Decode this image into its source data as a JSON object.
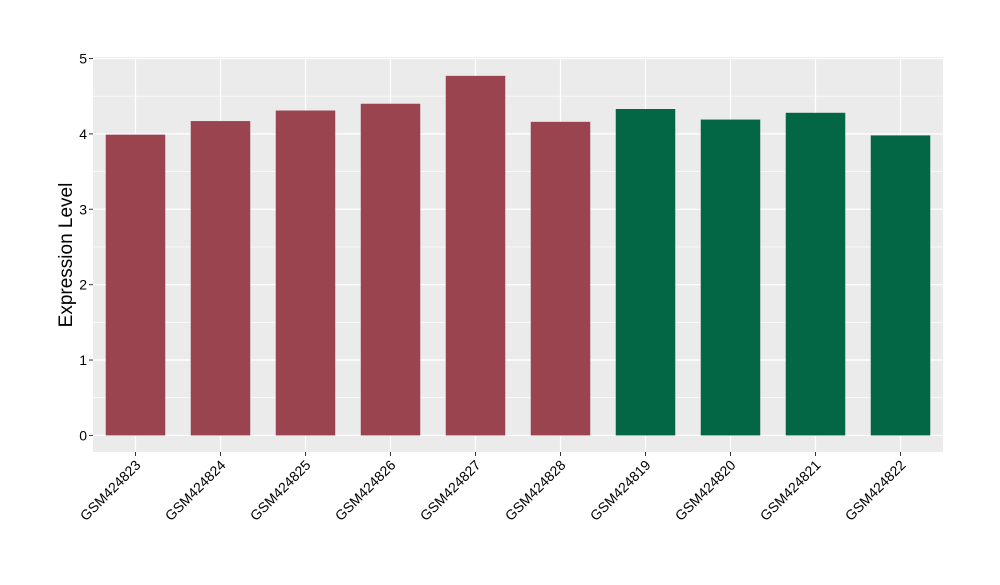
{
  "chart_data": {
    "type": "bar",
    "title": "",
    "xlabel": "",
    "ylabel": "Expression Level",
    "ylim": [
      -0.22,
      5.02
    ],
    "yticks": [
      0,
      1,
      2,
      3,
      4,
      5
    ],
    "grid": true,
    "categories": [
      "GSM424823",
      "GSM424824",
      "GSM424825",
      "GSM424826",
      "GSM424827",
      "GSM424828",
      "GSM424819",
      "GSM424820",
      "GSM424821",
      "GSM424822"
    ],
    "values": [
      3.99,
      4.17,
      4.31,
      4.4,
      4.77,
      4.16,
      4.33,
      4.19,
      4.28,
      3.98
    ],
    "bar_colors": [
      "#9a4450",
      "#9a4450",
      "#9a4450",
      "#9a4450",
      "#9a4450",
      "#9a4450",
      "#036645",
      "#036645",
      "#036645",
      "#036645"
    ],
    "panel_background": "#ebebeb",
    "grid_color": "#ffffff"
  }
}
